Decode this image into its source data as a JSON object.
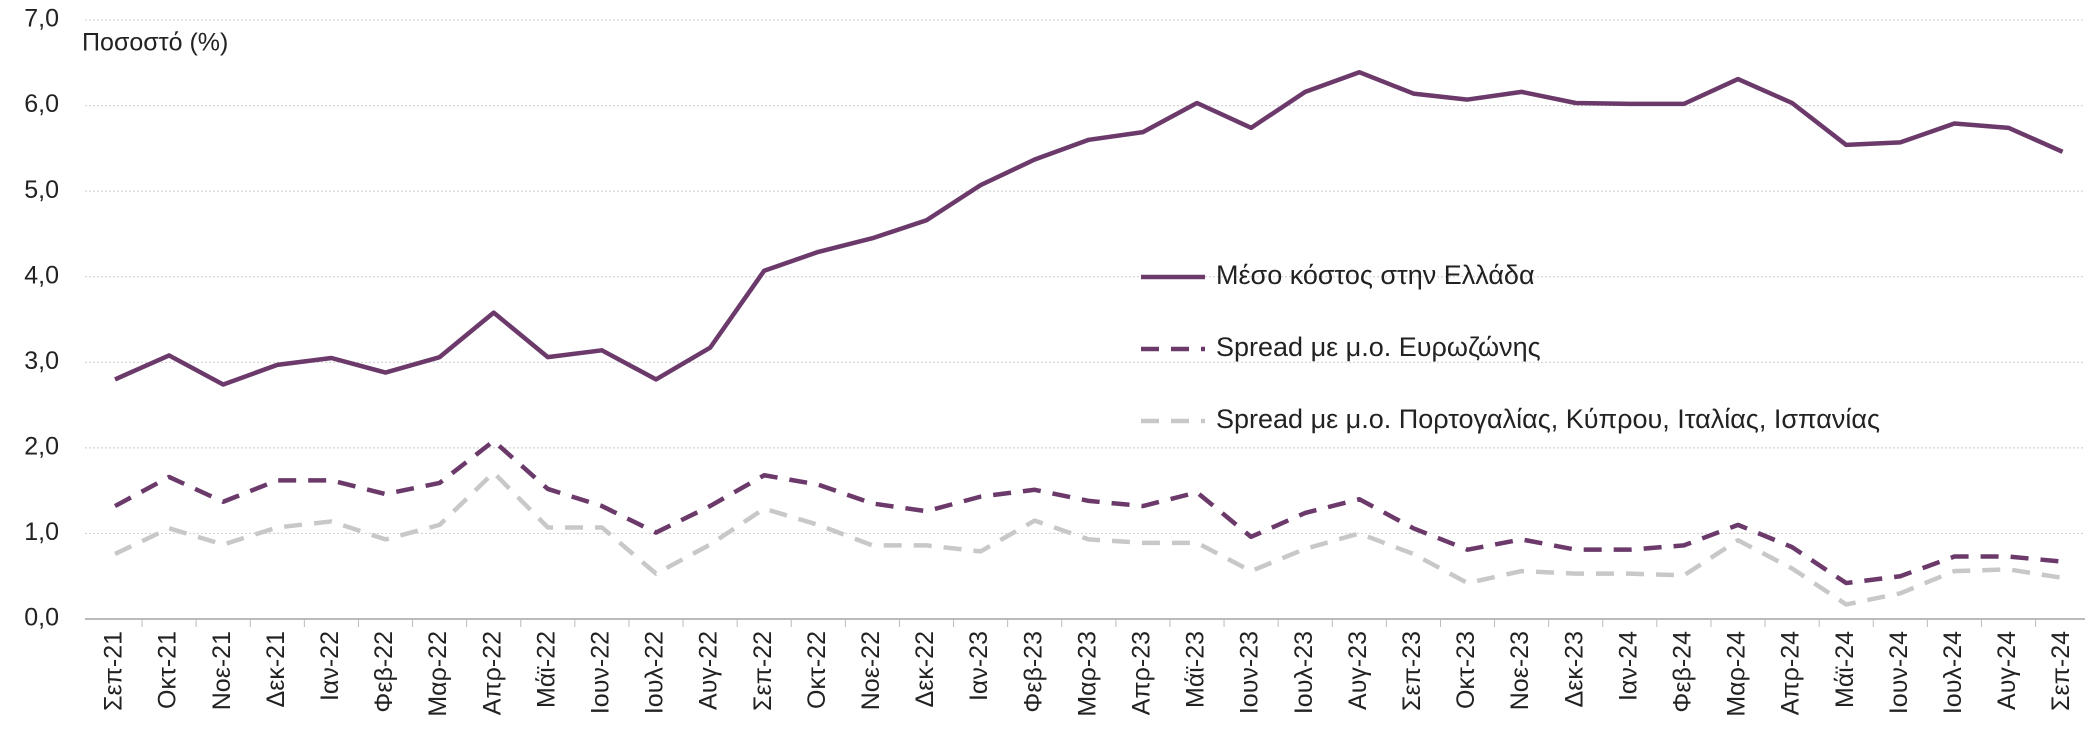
{
  "chart_data": {
    "type": "line",
    "y_label": "Ποσοστό (%)",
    "categories": [
      "Σεπ-21",
      "Οκτ-21",
      "Νοε-21",
      "Δεκ-21",
      "Ιαν-22",
      "Φεβ-22",
      "Μαρ-22",
      "Απρ-22",
      "Μάϊ-22",
      "Ιουν-22",
      "Ιουλ-22",
      "Αυγ-22",
      "Σεπ-22",
      "Οκτ-22",
      "Νοε-22",
      "Δεκ-22",
      "Ιαν-23",
      "Φεβ-23",
      "Μαρ-23",
      "Απρ-23",
      "Μάϊ-23",
      "Ιουν-23",
      "Ιουλ-23",
      "Αυγ-23",
      "Σεπ-23",
      "Οκτ-23",
      "Νοε-23",
      "Δεκ-23",
      "Ιαν-24",
      "Φεβ-24",
      "Μαρ-24",
      "Απρ-24",
      "Μάϊ-24",
      "Ιουν-24",
      "Ιουλ-24",
      "Αυγ-24",
      "Σεπ-24"
    ],
    "series": [
      {
        "name": "Μέσο κόστος στην Ελλάδα",
        "color": "#6b3a6b",
        "dash": "solid",
        "values": [
          2.8,
          3.08,
          2.74,
          2.97,
          3.05,
          2.88,
          3.06,
          3.58,
          3.06,
          3.14,
          2.8,
          3.17,
          4.07,
          4.29,
          4.45,
          4.66,
          5.07,
          5.37,
          5.6,
          5.69,
          6.03,
          5.74,
          6.16,
          6.39,
          6.14,
          6.07,
          6.16,
          6.03,
          6.02,
          6.02,
          6.31,
          6.03,
          5.54,
          5.57,
          5.79,
          5.74,
          5.46
        ]
      },
      {
        "name": "Spread με μ.ο. Ευρωζώνης",
        "color": "#6b3a6b",
        "dash": "dashed",
        "values": [
          1.32,
          1.66,
          1.37,
          1.62,
          1.62,
          1.46,
          1.59,
          2.08,
          1.52,
          1.32,
          1.01,
          1.32,
          1.68,
          1.57,
          1.35,
          1.26,
          1.43,
          1.51,
          1.38,
          1.32,
          1.48,
          0.96,
          1.24,
          1.4,
          1.06,
          0.81,
          0.93,
          0.81,
          0.81,
          0.86,
          1.1,
          0.84,
          0.42,
          0.5,
          0.73,
          0.73,
          0.67
        ]
      },
      {
        "name": "Spread με μ.ο. Πορτογαλίας, Κύπρου, Ιταλίας, Ισπανίας",
        "color": "#c8c8c8",
        "dash": "dashed",
        "values": [
          0.76,
          1.06,
          0.87,
          1.07,
          1.14,
          0.93,
          1.1,
          1.71,
          1.07,
          1.07,
          0.53,
          0.87,
          1.29,
          1.1,
          0.86,
          0.86,
          0.79,
          1.15,
          0.93,
          0.89,
          0.89,
          0.56,
          0.82,
          1.0,
          0.76,
          0.42,
          0.56,
          0.53,
          0.53,
          0.51,
          0.92,
          0.59,
          0.17,
          0.3,
          0.56,
          0.58,
          0.48
        ]
      }
    ],
    "ylim": [
      0,
      7
    ],
    "yticks": [
      {
        "value": 0,
        "label": "0,0"
      },
      {
        "value": 1,
        "label": "1,0"
      },
      {
        "value": 2,
        "label": "2,0"
      },
      {
        "value": 3,
        "label": "3,0"
      },
      {
        "value": 4,
        "label": "4,0"
      },
      {
        "value": 5,
        "label": "5,0"
      },
      {
        "value": 6,
        "label": "6,0"
      },
      {
        "value": 7,
        "label": "7,0"
      }
    ],
    "grid": true,
    "legend": "center-right"
  }
}
